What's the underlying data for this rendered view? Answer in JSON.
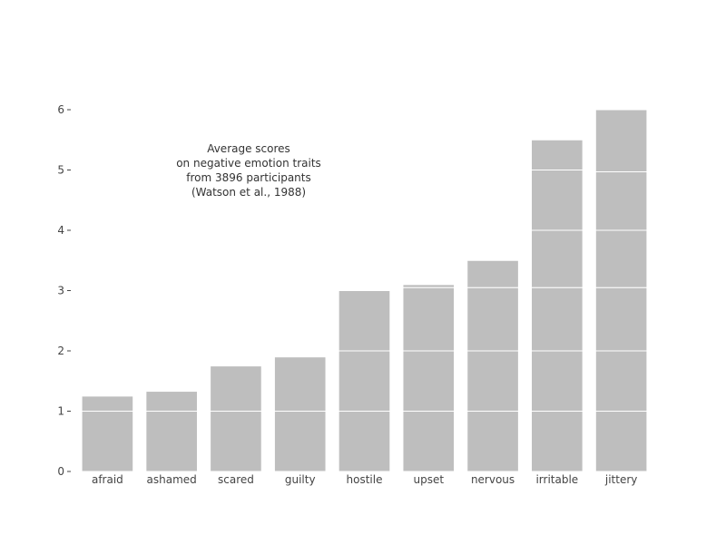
{
  "chart_data": {
    "type": "bar",
    "stacked": true,
    "categories": [
      "afraid",
      "ashamed",
      "scared",
      "guilty",
      "hostile",
      "upset",
      "nervous",
      "irritable",
      "jittery"
    ],
    "values": [
      1.25,
      1.33,
      1.75,
      1.9,
      3.0,
      3.1,
      3.5,
      5.5,
      6.0
    ],
    "stack_segments": [
      [
        1.0,
        0.25
      ],
      [
        1.0,
        0.33
      ],
      [
        1.0,
        0.75
      ],
      [
        1.0,
        0.9
      ],
      [
        1.0,
        1.0,
        1.0
      ],
      [
        1.0,
        1.0,
        1.05,
        0.05
      ],
      [
        1.0,
        1.0,
        1.05,
        0.45
      ],
      [
        1.0,
        1.0,
        1.05,
        0.95,
        1.0,
        0.5
      ],
      [
        1.0,
        1.0,
        1.05,
        0.95,
        0.97,
        1.03
      ]
    ],
    "yticks": [
      0,
      1,
      2,
      3,
      4,
      5,
      6
    ],
    "ylim": [
      0,
      6
    ],
    "title": "",
    "xlabel": "",
    "ylabel": "",
    "annotation": [
      "Average scores",
      "on negative emotion traits",
      "from 3896 participants",
      "(Watson et al., 1988)"
    ],
    "bar_color": "#bebebe",
    "segment_separator_color": "#ffffff",
    "grid": false,
    "legend": "none"
  }
}
